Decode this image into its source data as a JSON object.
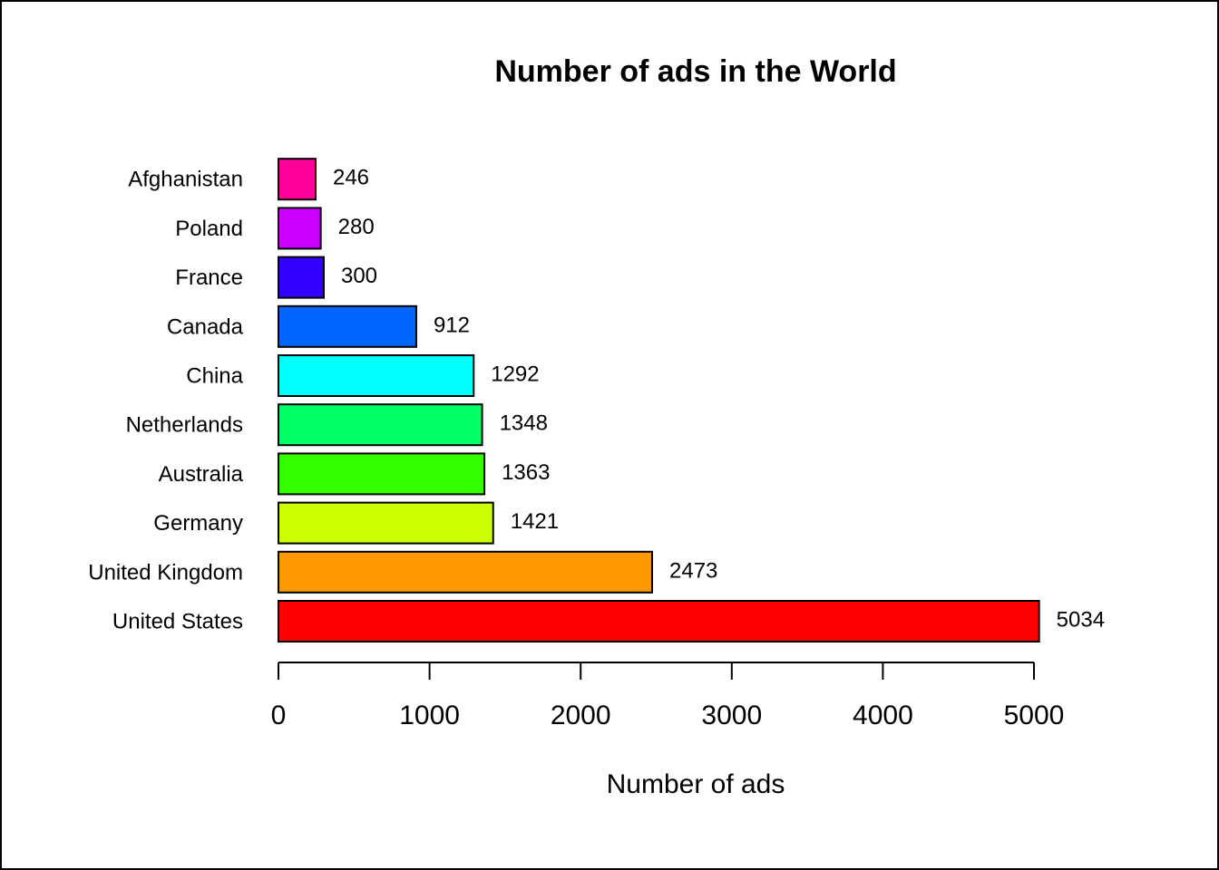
{
  "chart_data": {
    "type": "bar",
    "orientation": "horizontal",
    "title": "Number of ads in the World",
    "xlabel": "Number of ads",
    "ylabel": "",
    "categories": [
      "United States",
      "United Kingdom",
      "Germany",
      "Australia",
      "Netherlands",
      "China",
      "Canada",
      "France",
      "Poland",
      "Afghanistan"
    ],
    "values": [
      5034,
      2473,
      1421,
      1363,
      1348,
      1292,
      912,
      300,
      280,
      246
    ],
    "colors": [
      "#FF0000",
      "#FF9900",
      "#CCFF00",
      "#33FF00",
      "#00FF66",
      "#00FFFF",
      "#0066FF",
      "#3300FF",
      "#CC00FF",
      "#FF0099"
    ],
    "xlim": [
      0,
      5000
    ],
    "xticks": [
      0,
      1000,
      2000,
      3000,
      4000,
      5000
    ],
    "grid": false,
    "legend": "none"
  }
}
